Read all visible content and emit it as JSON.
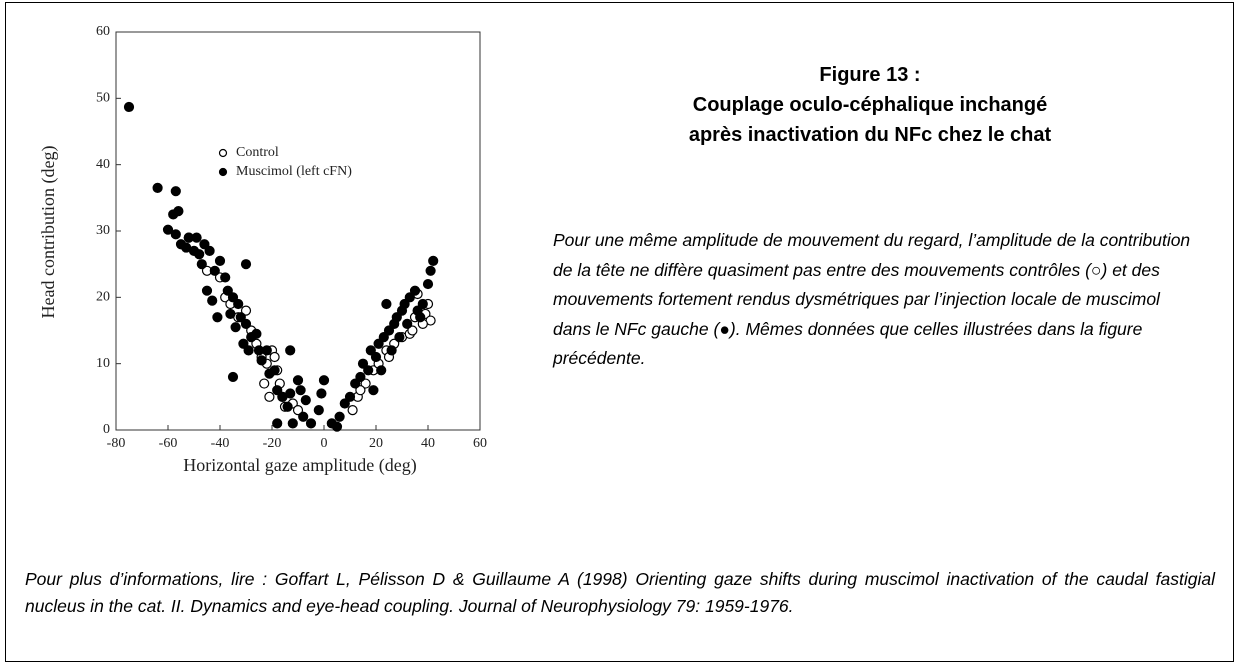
{
  "chart_data": {
    "type": "scatter",
    "xlabel": "Horizontal gaze amplitude (deg)",
    "ylabel": "Head contribution (deg)",
    "xlim": [
      -80,
      60
    ],
    "xticks": [
      -80,
      -60,
      -40,
      -20,
      0,
      20,
      40,
      60
    ],
    "ylim": [
      0,
      60
    ],
    "yticks": [
      0,
      10,
      20,
      30,
      40,
      50,
      60
    ],
    "series": [
      {
        "name": "Control",
        "color": "#000000",
        "marker": "open",
        "x": [
          -52,
          -45,
          -40,
          -38,
          -36,
          -33,
          -30,
          -28,
          -26,
          -24,
          -22,
          -20,
          -19,
          -18,
          -17,
          -16,
          -15,
          -12,
          -10,
          11,
          13,
          16,
          19,
          21,
          24,
          27,
          30,
          33,
          35,
          36,
          37,
          39,
          40,
          41,
          38,
          34,
          25,
          14,
          -21,
          -23
        ],
        "values": [
          29,
          24,
          23,
          20,
          19,
          17,
          18,
          15,
          13,
          11,
          10,
          12,
          11,
          9,
          7,
          5,
          3.5,
          4,
          3,
          3,
          5,
          7,
          9,
          10,
          12,
          13,
          14,
          14.5,
          17,
          20.5,
          18,
          17.5,
          19,
          16.5,
          16,
          15,
          11,
          6,
          5,
          7
        ]
      },
      {
        "name": "Muscimol (left cFN)",
        "color": "#000000",
        "marker": "filled",
        "x": [
          -75,
          -64,
          -57,
          -56,
          -60,
          -57,
          -55,
          -53,
          -50,
          -48,
          -52,
          -49,
          -46,
          -44,
          -42,
          -40,
          -38,
          -45,
          -43,
          -41,
          -37,
          -35,
          -33,
          -32,
          -30,
          -28,
          -34,
          -36,
          -31,
          -29,
          -26,
          -25,
          -24,
          -22,
          -21,
          -35,
          -19,
          -18,
          -16,
          -13,
          -10,
          -9,
          -7,
          -14,
          -5,
          -8,
          -2,
          -1,
          0,
          -18,
          -12,
          3,
          5,
          6,
          8,
          10,
          12,
          14,
          15,
          17,
          18,
          20,
          21,
          22,
          23,
          25,
          26,
          27,
          28,
          29,
          30,
          31,
          32,
          33,
          35,
          36,
          38,
          40,
          41,
          42,
          -13,
          -30,
          -58,
          -47,
          19,
          24,
          37
        ],
        "values": [
          48.7,
          36.5,
          36,
          33,
          30.2,
          29.5,
          28,
          27.5,
          27,
          26.5,
          29,
          29,
          28,
          27,
          24,
          25.5,
          23,
          21,
          19.5,
          17,
          21,
          20,
          19,
          17,
          16,
          14,
          15.5,
          17.5,
          13,
          12,
          14.5,
          12,
          10.5,
          12,
          8.5,
          8,
          9,
          6,
          5,
          5.5,
          7.5,
          6,
          4.5,
          3.5,
          1,
          2,
          3,
          5.5,
          7.5,
          1,
          1,
          1,
          0.5,
          2,
          4,
          5,
          7,
          8,
          10,
          9,
          12,
          11,
          13,
          9,
          14,
          15,
          12,
          16,
          17,
          14,
          18,
          19,
          16,
          20,
          21,
          18,
          19,
          22,
          24,
          25.5,
          12,
          25,
          32.5,
          25,
          6,
          19,
          17
        ]
      }
    ]
  },
  "caption": {
    "title": [
      "Figure 13 :",
      "Couplage oculo-céphalique inchangé",
      "après inactivation du NFc chez le chat"
    ],
    "text": "Pour une même amplitude de mouvement du regard, l’amplitude de la contribution de la tête ne diffère quasiment pas entre des mouvements contrôles (○) et des mouvements fortement rendus dysmétriques par l’injection locale de muscimol dans le NFc gauche (●). Mêmes données que celles illustrées dans la figure précédente."
  },
  "reference": "Pour plus d’informations, lire : Goffart L, Pélisson D & Guillaume A (1998) Orienting gaze shifts during muscimol inactivation of the caudal fastigial nucleus in the cat. II. Dynamics and eye-head coupling. Journal of Neurophysiology 79: 1959-1976."
}
